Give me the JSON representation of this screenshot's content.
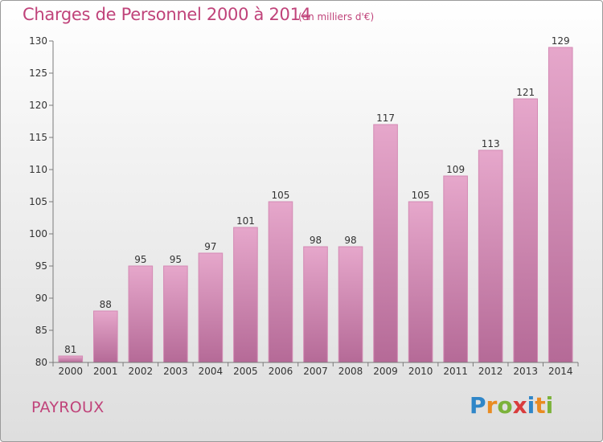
{
  "header": {
    "title": "Charges de Personnel 2000 à 2014",
    "subtitle": "(en milliers d'€)"
  },
  "footer": {
    "commune": "PAYROUX",
    "brand_logo": "Proxiti"
  },
  "colors": {
    "bar_top": "#e6a7cb",
    "bar_bottom": "#b56a97",
    "bar_base": "#d48ab4",
    "text_accent": "#c0437a"
  },
  "chart_data": {
    "type": "bar",
    "categories": [
      "2000",
      "2001",
      "2002",
      "2003",
      "2004",
      "2005",
      "2006",
      "2007",
      "2008",
      "2009",
      "2010",
      "2011",
      "2012",
      "2013",
      "2014"
    ],
    "values": [
      81,
      88,
      95,
      95,
      97,
      101,
      105,
      98,
      98,
      117,
      105,
      109,
      113,
      121,
      129
    ],
    "title": "Charges de Personnel 2000 à 2014",
    "subtitle": "(en milliers d'€)",
    "xlabel": "",
    "ylabel": "",
    "ylim": [
      80,
      130
    ],
    "yticks": [
      80,
      85,
      90,
      95,
      100,
      105,
      110,
      115,
      120,
      125,
      130
    ],
    "grid": false,
    "data_labels": true
  }
}
